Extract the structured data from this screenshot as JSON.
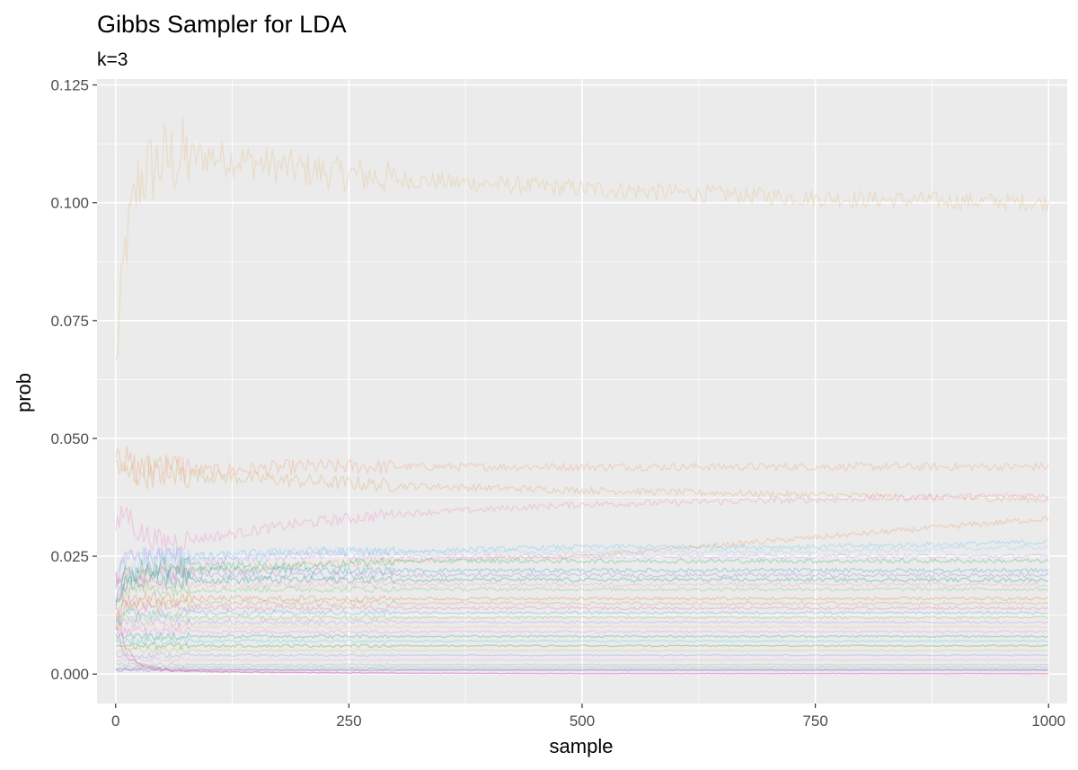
{
  "chart_data": {
    "type": "line",
    "title": "Gibbs Sampler for LDA",
    "subtitle": "k=3",
    "xlabel": "sample",
    "ylabel": "prob",
    "xlim": [
      -20,
      1020
    ],
    "ylim": [
      -0.00625,
      0.12625
    ],
    "x_ticks": [
      0,
      250,
      500,
      750,
      1000
    ],
    "x_tick_labels": [
      "0",
      "250",
      "500",
      "750",
      "1000"
    ],
    "y_ticks": [
      0.0,
      0.025,
      0.05,
      0.075,
      0.1,
      0.125
    ],
    "y_tick_labels": [
      "0.000",
      "0.025",
      "0.050",
      "0.075",
      "0.100",
      "0.125"
    ],
    "grid": true,
    "legend": "none",
    "panel_background": "#ebebeb",
    "grid_color": "#ffffff",
    "line_opacity": 0.35,
    "x_sample_points": [
      0,
      10,
      25,
      50,
      100,
      200,
      300,
      500,
      750,
      1000
    ],
    "series": [
      {
        "color": "#e6c08a",
        "values": [
          0.065,
          0.09,
          0.105,
          0.109,
          0.11,
          0.107,
          0.105,
          0.103,
          0.101,
          0.1
        ]
      },
      {
        "color": "#f0a080",
        "values": [
          0.05,
          0.045,
          0.043,
          0.044,
          0.043,
          0.044,
          0.044,
          0.044,
          0.044,
          0.044
        ]
      },
      {
        "color": "#d9b06a",
        "values": [
          0.045,
          0.042,
          0.043,
          0.043,
          0.042,
          0.041,
          0.04,
          0.039,
          0.038,
          0.037
        ]
      },
      {
        "color": "#f08cc8",
        "values": [
          0.03,
          0.035,
          0.03,
          0.028,
          0.029,
          0.032,
          0.034,
          0.036,
          0.037,
          0.038
        ]
      },
      {
        "color": "#e8a070",
        "values": [
          0.02,
          0.022,
          0.021,
          0.022,
          0.022,
          0.023,
          0.024,
          0.025,
          0.029,
          0.033
        ]
      },
      {
        "color": "#6ec6f0",
        "values": [
          0.02,
          0.024,
          0.025,
          0.025,
          0.025,
          0.026,
          0.026,
          0.027,
          0.027,
          0.028
        ]
      },
      {
        "color": "#9ad0f8",
        "values": [
          0.015,
          0.02,
          0.024,
          0.025,
          0.025,
          0.026,
          0.026,
          0.026,
          0.026,
          0.027
        ]
      },
      {
        "color": "#c89cf0",
        "values": [
          0.02,
          0.024,
          0.025,
          0.025,
          0.024,
          0.025,
          0.025,
          0.025,
          0.025,
          0.025
        ]
      },
      {
        "color": "#3cb878",
        "values": [
          0.015,
          0.02,
          0.022,
          0.023,
          0.023,
          0.023,
          0.024,
          0.024,
          0.024,
          0.024
        ]
      },
      {
        "color": "#3aa0d0",
        "values": [
          0.015,
          0.021,
          0.022,
          0.022,
          0.022,
          0.022,
          0.022,
          0.022,
          0.022,
          0.022
        ]
      },
      {
        "color": "#9a8ad8",
        "values": [
          0.018,
          0.021,
          0.021,
          0.021,
          0.021,
          0.021,
          0.021,
          0.021,
          0.021,
          0.021
        ]
      },
      {
        "color": "#1aa08a",
        "values": [
          0.015,
          0.019,
          0.02,
          0.02,
          0.02,
          0.02,
          0.02,
          0.02,
          0.02,
          0.02
        ]
      },
      {
        "color": "#f4a0c0",
        "values": [
          0.015,
          0.018,
          0.019,
          0.019,
          0.019,
          0.019,
          0.019,
          0.019,
          0.019,
          0.019
        ]
      },
      {
        "color": "#7ccc6a",
        "values": [
          0.012,
          0.017,
          0.018,
          0.018,
          0.018,
          0.018,
          0.018,
          0.018,
          0.018,
          0.018
        ]
      },
      {
        "color": "#e88050",
        "values": [
          0.012,
          0.015,
          0.016,
          0.016,
          0.016,
          0.016,
          0.016,
          0.016,
          0.016,
          0.016
        ]
      },
      {
        "color": "#c0b050",
        "values": [
          0.01,
          0.014,
          0.015,
          0.015,
          0.015,
          0.015,
          0.015,
          0.015,
          0.015,
          0.015
        ]
      },
      {
        "color": "#f070c0",
        "values": [
          0.02,
          0.016,
          0.014,
          0.014,
          0.014,
          0.014,
          0.014,
          0.014,
          0.014,
          0.014
        ]
      },
      {
        "color": "#58b8e0",
        "values": [
          0.01,
          0.013,
          0.013,
          0.013,
          0.013,
          0.013,
          0.013,
          0.013,
          0.013,
          0.013
        ]
      },
      {
        "color": "#98c060",
        "values": [
          0.01,
          0.012,
          0.012,
          0.012,
          0.012,
          0.012,
          0.012,
          0.012,
          0.012,
          0.012
        ]
      },
      {
        "color": "#b898e8",
        "values": [
          0.012,
          0.011,
          0.011,
          0.011,
          0.011,
          0.011,
          0.011,
          0.011,
          0.011,
          0.011
        ]
      },
      {
        "color": "#f8b8a0",
        "values": [
          0.01,
          0.01,
          0.01,
          0.01,
          0.01,
          0.01,
          0.01,
          0.01,
          0.01,
          0.01
        ]
      },
      {
        "color": "#e890f0",
        "values": [
          0.009,
          0.009,
          0.009,
          0.009,
          0.009,
          0.009,
          0.009,
          0.009,
          0.009,
          0.009
        ]
      },
      {
        "color": "#30b090",
        "values": [
          0.008,
          0.008,
          0.008,
          0.008,
          0.008,
          0.008,
          0.008,
          0.008,
          0.008,
          0.008
        ]
      },
      {
        "color": "#60c8c8",
        "values": [
          0.007,
          0.007,
          0.007,
          0.007,
          0.007,
          0.007,
          0.007,
          0.007,
          0.007,
          0.007
        ]
      },
      {
        "color": "#48a848",
        "values": [
          0.006,
          0.006,
          0.006,
          0.006,
          0.006,
          0.006,
          0.006,
          0.006,
          0.006,
          0.006
        ]
      },
      {
        "color": "#d8c070",
        "values": [
          0.005,
          0.005,
          0.005,
          0.005,
          0.005,
          0.005,
          0.005,
          0.005,
          0.005,
          0.005
        ]
      },
      {
        "color": "#90a0f0",
        "values": [
          0.004,
          0.004,
          0.004,
          0.004,
          0.004,
          0.004,
          0.004,
          0.004,
          0.004,
          0.004
        ]
      },
      {
        "color": "#f4a4d4",
        "values": [
          0.003,
          0.003,
          0.003,
          0.003,
          0.003,
          0.003,
          0.003,
          0.003,
          0.003,
          0.003
        ]
      },
      {
        "color": "#88d0a0",
        "values": [
          0.002,
          0.002,
          0.002,
          0.002,
          0.002,
          0.002,
          0.002,
          0.002,
          0.002,
          0.002
        ]
      },
      {
        "color": "#a0a0d8",
        "values": [
          0.0015,
          0.0015,
          0.0015,
          0.0015,
          0.0015,
          0.0015,
          0.0015,
          0.0015,
          0.0015,
          0.0015
        ]
      },
      {
        "color": "#7080c0",
        "values": [
          0.001,
          0.001,
          0.001,
          0.001,
          0.001,
          0.001,
          0.001,
          0.001,
          0.001,
          0.001
        ]
      },
      {
        "color": "#9a60c0",
        "values": [
          0.0008,
          0.0008,
          0.0008,
          0.0008,
          0.0008,
          0.0008,
          0.0008,
          0.0008,
          0.0008,
          0.0008
        ]
      },
      {
        "color": "#e060a0",
        "values": [
          0.015,
          0.006,
          0.002,
          0.001,
          0.0005,
          0.0003,
          0.0002,
          0.0001,
          0.0001,
          0.0001
        ]
      },
      {
        "color": "#d070d0",
        "values": [
          0.01,
          0.004,
          0.002,
          0.001,
          0.0005,
          0.0003,
          0.0002,
          0.0001,
          0.0001,
          0.0001
        ]
      }
    ]
  }
}
